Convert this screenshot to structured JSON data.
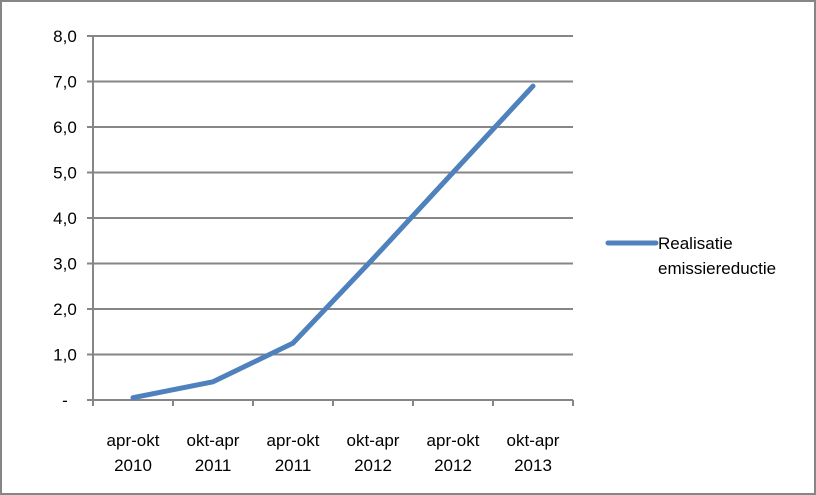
{
  "chart_data": {
    "type": "line",
    "categories": [
      [
        "apr-okt",
        "2010"
      ],
      [
        "okt-apr",
        "2011"
      ],
      [
        "apr-okt",
        "2011"
      ],
      [
        "okt-apr",
        "2012"
      ],
      [
        "apr-okt",
        "2012"
      ],
      [
        "okt-apr",
        "2013"
      ]
    ],
    "series": [
      {
        "name": "Realisatie emissiereductie",
        "name_lines": [
          "Realisatie",
          "emissiereductie"
        ],
        "values": [
          0.05,
          0.4,
          1.25,
          3.1,
          5.0,
          6.9
        ],
        "color": "#4f81bd"
      }
    ],
    "y_ticks": [
      {
        "value": 0,
        "label": "-"
      },
      {
        "value": 1,
        "label": "1,0"
      },
      {
        "value": 2,
        "label": "2,0"
      },
      {
        "value": 3,
        "label": "3,0"
      },
      {
        "value": 4,
        "label": "4,0"
      },
      {
        "value": 5,
        "label": "5,0"
      },
      {
        "value": 6,
        "label": "6,0"
      },
      {
        "value": 7,
        "label": "7,0"
      },
      {
        "value": 8,
        "label": "8,0"
      }
    ],
    "ylim": [
      0,
      8
    ],
    "grid": true,
    "legend_position": "right",
    "gridline_color": "#868686",
    "axis_color": "#868686"
  }
}
